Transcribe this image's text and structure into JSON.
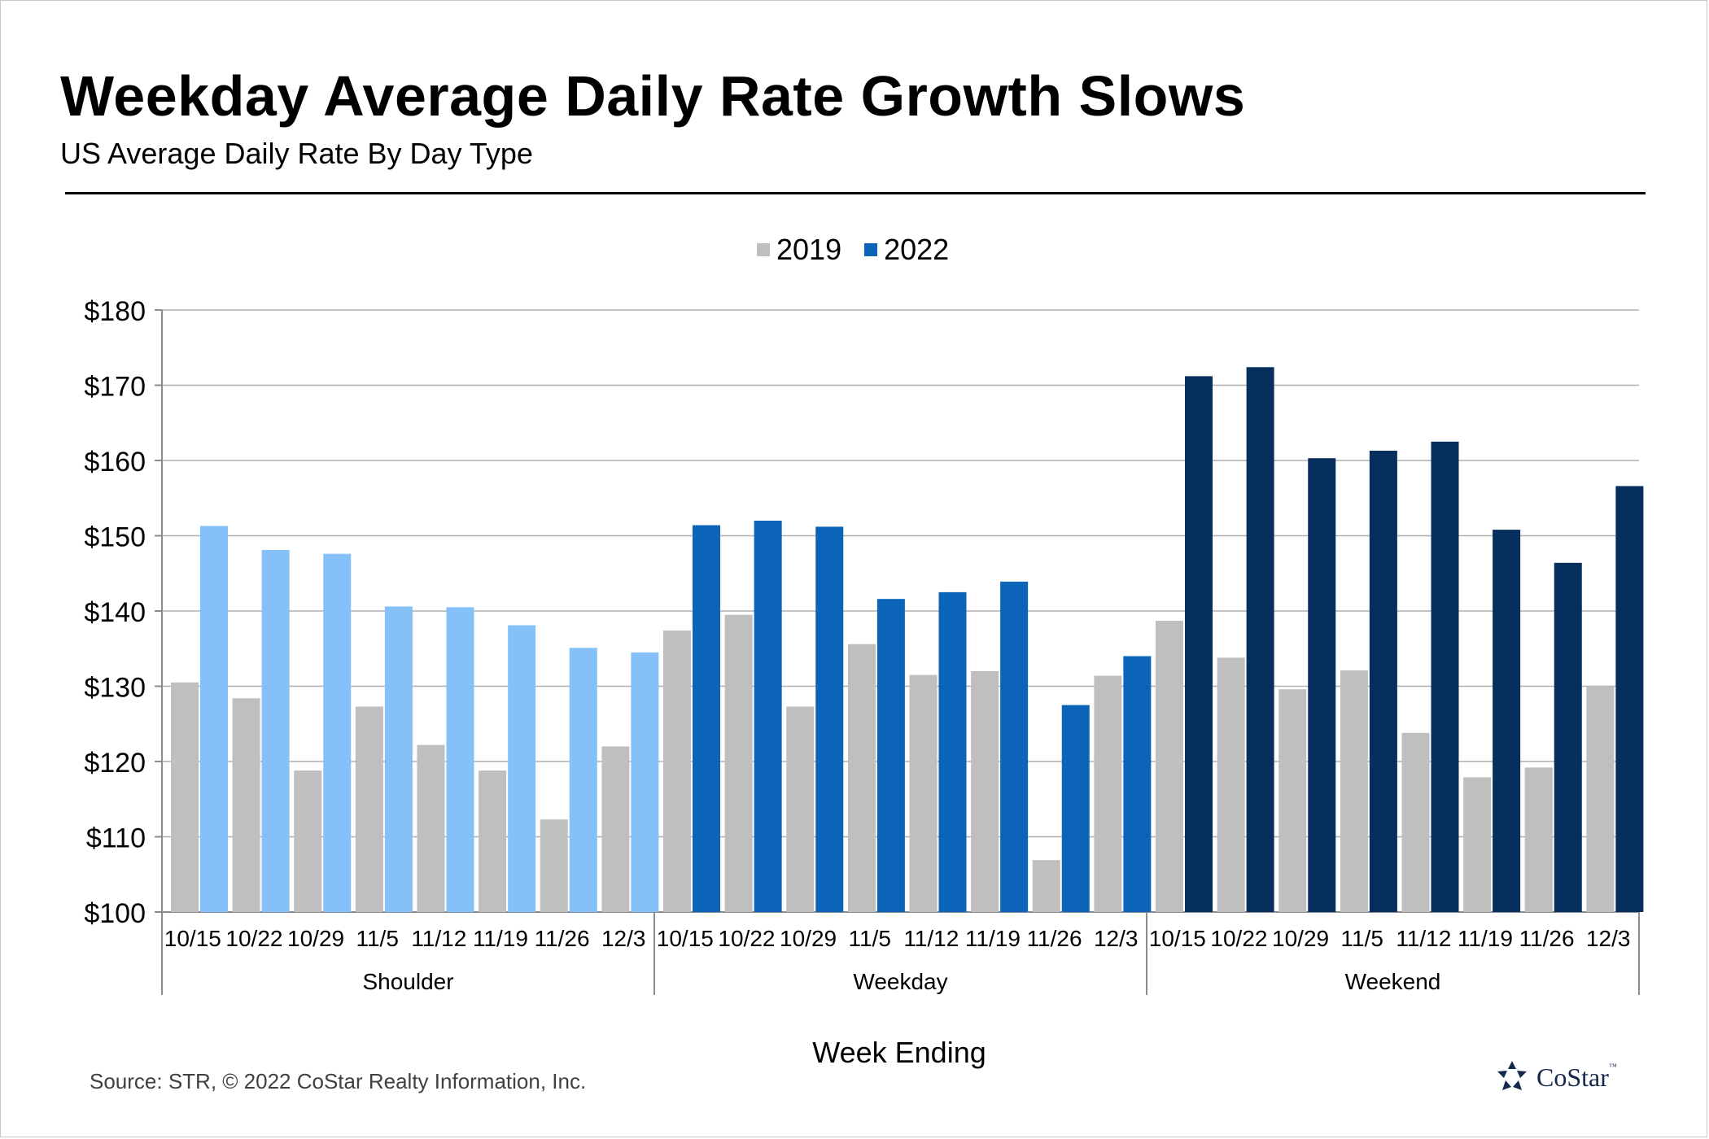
{
  "title": "Weekday Average Daily Rate Growth Slows",
  "subtitle": "US Average Daily Rate By Day Type",
  "source": "Source: STR, © 2022  CoStar Realty Information, Inc.",
  "logo": {
    "name": "CoStar",
    "tm": "™"
  },
  "colors": {
    "c2019": "#bfbfbf",
    "shoulder2022": "#85c1f8",
    "weekday2022": "#0b64b8",
    "weekend2022": "#062f5e",
    "grid": "#b0b0b0",
    "logo": "#14284b"
  },
  "chart_data": {
    "type": "bar",
    "xlabel": "Week Ending",
    "ylabel": "",
    "ylim": [
      100,
      180
    ],
    "yticks": [
      100,
      110,
      120,
      130,
      140,
      150,
      160,
      170,
      180
    ],
    "ytick_labels": [
      "$100",
      "$110",
      "$120",
      "$130",
      "$140",
      "$150",
      "$160",
      "$170",
      "$180"
    ],
    "grid": true,
    "legend_position": "top-center",
    "legend": [
      {
        "label": "2019",
        "color": "#bfbfbf"
      },
      {
        "label": "2022",
        "color": "#0b64b8"
      }
    ],
    "groups": [
      {
        "name": "Shoulder",
        "categories": [
          "10/15",
          "10/22",
          "10/29",
          "11/5",
          "11/12",
          "11/19",
          "11/26",
          "12/3"
        ],
        "series": [
          {
            "name": "2019",
            "values": [
              130.5,
              128.4,
              118.8,
              127.3,
              122.2,
              118.8,
              112.3,
              122.0
            ]
          },
          {
            "name": "2022",
            "values": [
              151.3,
              148.1,
              147.6,
              140.6,
              140.5,
              138.1,
              135.1,
              134.5
            ]
          }
        ]
      },
      {
        "name": "Weekday",
        "categories": [
          "10/15",
          "10/22",
          "10/29",
          "11/5",
          "11/12",
          "11/19",
          "11/26",
          "12/3"
        ],
        "series": [
          {
            "name": "2019",
            "values": [
              137.4,
              139.5,
              127.3,
              135.6,
              131.5,
              132.0,
              106.9,
              131.4
            ]
          },
          {
            "name": "2022",
            "values": [
              151.4,
              152.0,
              151.2,
              141.6,
              142.5,
              143.9,
              127.5,
              134.0
            ]
          }
        ]
      },
      {
        "name": "Weekend",
        "categories": [
          "10/15",
          "10/22",
          "10/29",
          "11/5",
          "11/12",
          "11/19",
          "11/26",
          "12/3"
        ],
        "series": [
          {
            "name": "2019",
            "values": [
              138.7,
              133.8,
              129.6,
              132.1,
              123.8,
              117.9,
              119.2,
              130.0
            ]
          },
          {
            "name": "2022",
            "values": [
              171.2,
              172.4,
              160.3,
              161.3,
              162.5,
              150.8,
              146.4,
              156.6
            ]
          }
        ]
      }
    ]
  }
}
